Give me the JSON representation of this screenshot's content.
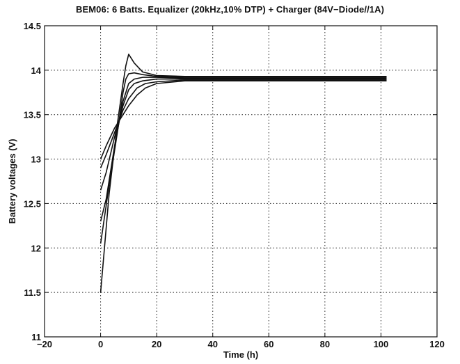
{
  "chart_data": {
    "type": "line",
    "title": "BEM06: 6 Batts. Equalizer (20kHz,10% DTP) + Charger (84V−Diode//1A)",
    "xlabel": "Time (h)",
    "ylabel": "Battery voltages (V)",
    "xlim": [
      -20,
      120
    ],
    "ylim": [
      11,
      14.5
    ],
    "xticks": [
      -20,
      0,
      20,
      40,
      60,
      80,
      100,
      120
    ],
    "yticks": [
      11,
      11.5,
      12,
      12.5,
      13,
      13.5,
      14,
      14.5
    ],
    "xtick_labels": [
      "−20",
      "0",
      "20",
      "40",
      "60",
      "80",
      "100",
      "120"
    ],
    "ytick_labels": [
      "11",
      "11.5",
      "12",
      "12.5",
      "13",
      "13.5",
      "14",
      "14.5"
    ],
    "grid": true,
    "grid_style": "dotted",
    "line_color": "#111111",
    "series": [
      {
        "x": [
          0,
          3,
          6,
          8,
          9,
          10,
          12,
          15,
          20,
          30,
          60,
          102
        ],
        "y": [
          11.5,
          12.6,
          13.4,
          13.85,
          14.05,
          14.18,
          14.08,
          13.98,
          13.94,
          13.93,
          13.93,
          13.93
        ]
      },
      {
        "x": [
          0,
          3,
          6,
          8,
          9,
          10,
          12,
          15,
          20,
          30,
          60,
          102
        ],
        "y": [
          12.05,
          12.7,
          13.3,
          13.75,
          13.9,
          13.96,
          13.97,
          13.95,
          13.93,
          13.92,
          13.92,
          13.92
        ]
      },
      {
        "x": [
          0,
          2,
          5,
          8,
          10,
          12,
          15,
          20,
          30,
          60,
          102
        ],
        "y": [
          12.3,
          12.55,
          13.15,
          13.65,
          13.85,
          13.9,
          13.92,
          13.92,
          13.91,
          13.91,
          13.91
        ]
      },
      {
        "x": [
          0,
          2,
          5,
          8,
          10,
          12,
          15,
          20,
          30,
          60,
          102
        ],
        "y": [
          12.65,
          12.85,
          13.25,
          13.6,
          13.78,
          13.85,
          13.88,
          13.9,
          13.9,
          13.9,
          13.9
        ]
      },
      {
        "x": [
          0,
          2,
          5,
          8,
          10,
          13,
          16,
          20,
          30,
          60,
          102
        ],
        "y": [
          12.9,
          13.05,
          13.3,
          13.55,
          13.68,
          13.8,
          13.85,
          13.87,
          13.89,
          13.89,
          13.89
        ]
      },
      {
        "x": [
          0,
          2,
          5,
          8,
          10,
          13,
          16,
          20,
          30,
          60,
          102
        ],
        "y": [
          13.0,
          13.15,
          13.35,
          13.5,
          13.6,
          13.72,
          13.8,
          13.85,
          13.88,
          13.88,
          13.88
        ]
      }
    ]
  }
}
